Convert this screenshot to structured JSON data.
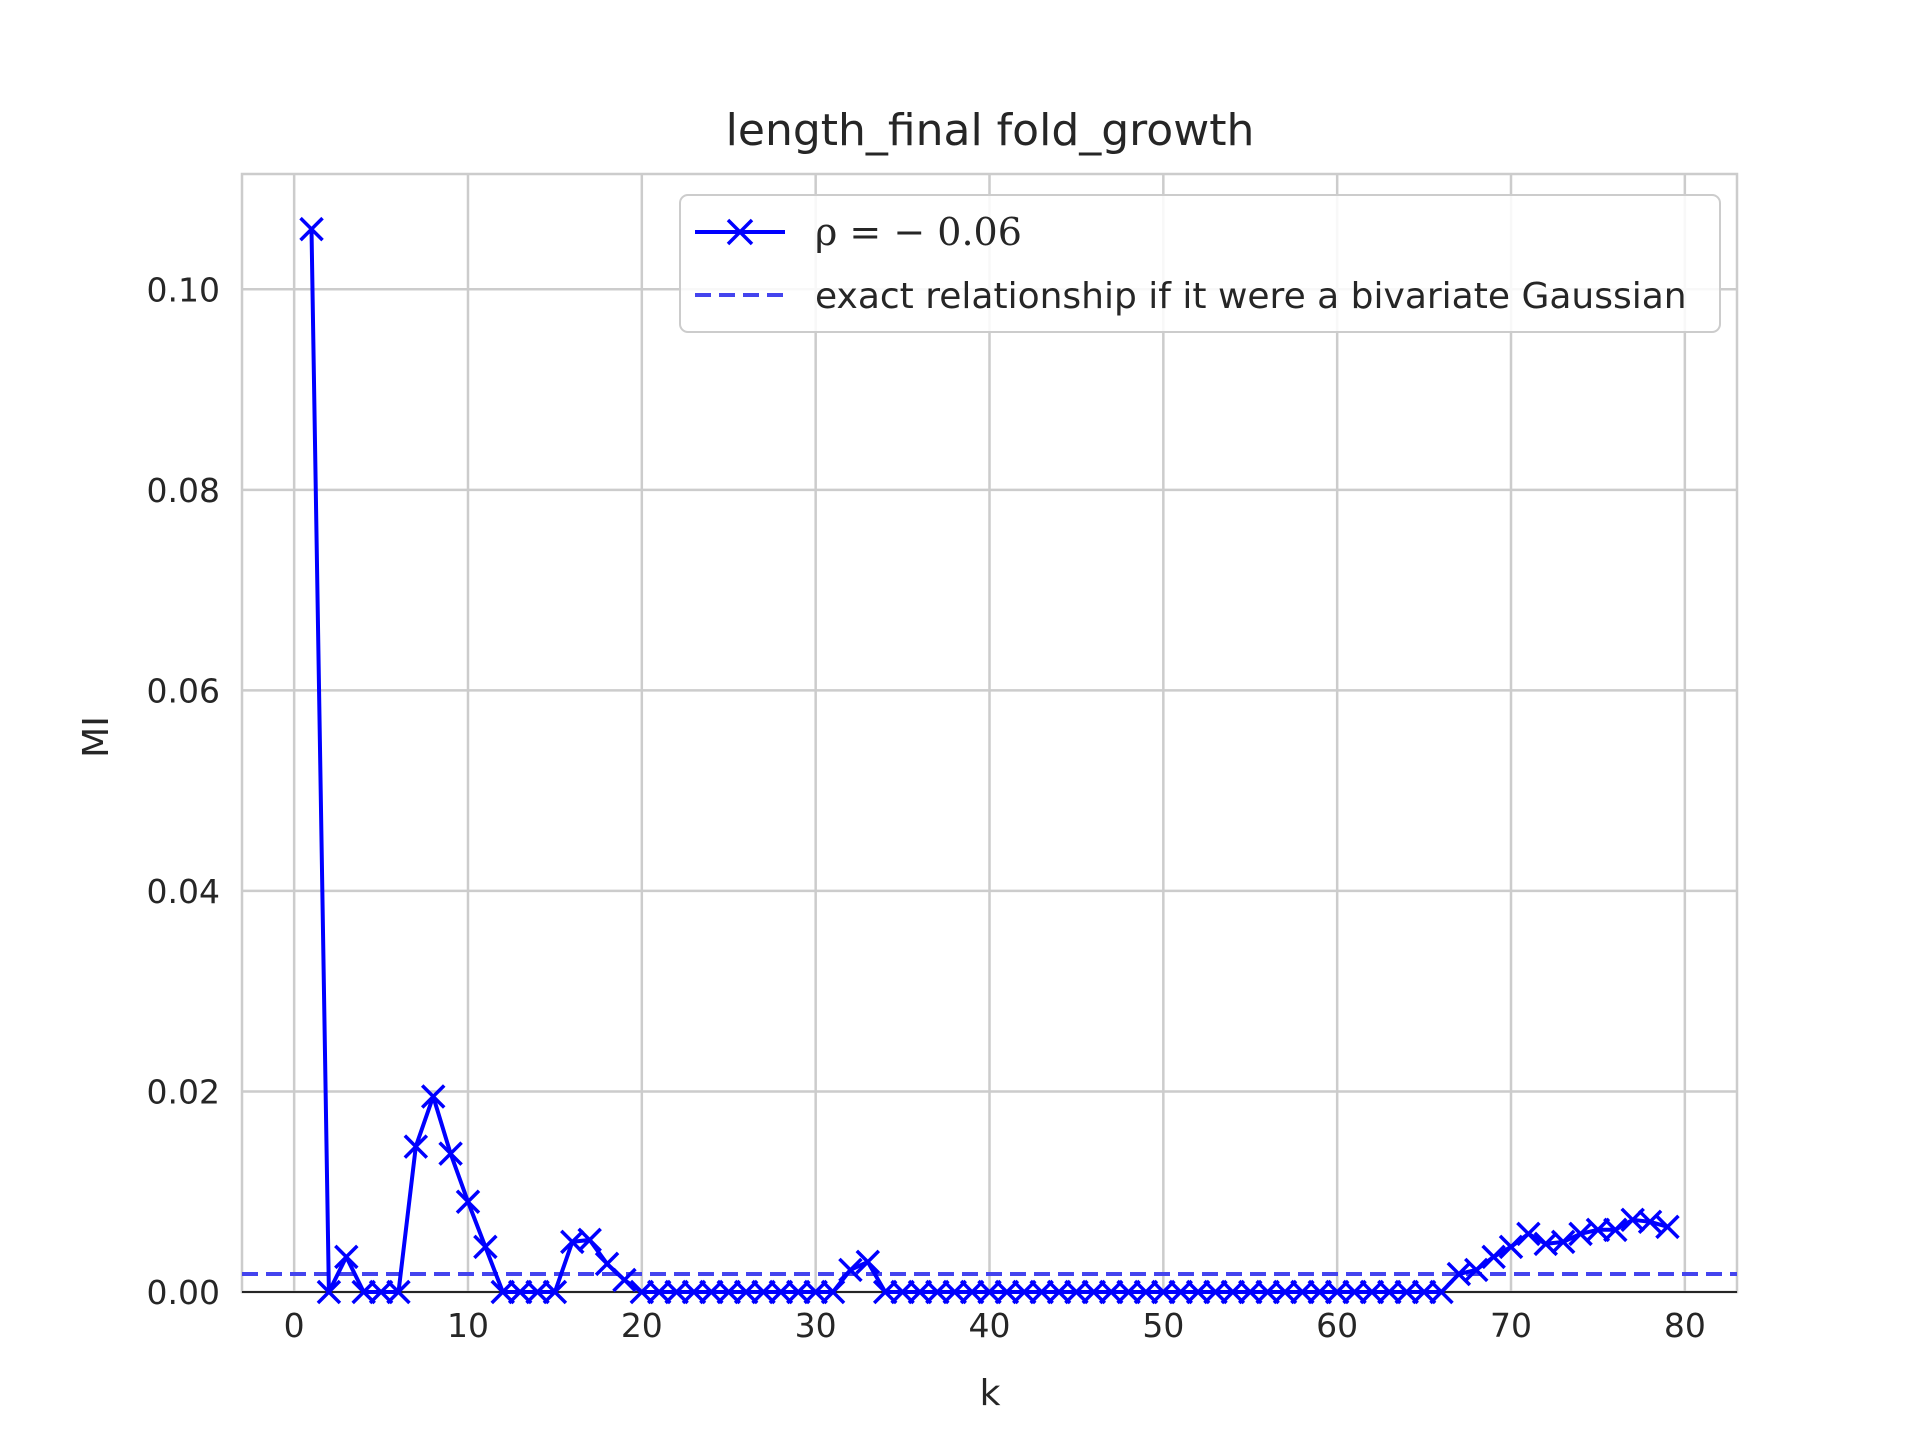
{
  "chart_data": {
    "type": "line",
    "title": "length_final fold_growth",
    "xlabel": "k",
    "ylabel": "MI",
    "xlim": [
      -3,
      83
    ],
    "ylim": [
      0,
      0.1115
    ],
    "xticks": [
      0,
      10,
      20,
      30,
      40,
      50,
      60,
      70,
      80
    ],
    "xtick_labels": [
      "0",
      "10",
      "20",
      "30",
      "40",
      "50",
      "60",
      "70",
      "80"
    ],
    "yticks": [
      0.0,
      0.02,
      0.04,
      0.06,
      0.08,
      0.1
    ],
    "ytick_labels": [
      "0.00",
      "0.02",
      "0.04",
      "0.06",
      "0.08",
      "0.10"
    ],
    "grid": true,
    "legend_position": "top-right",
    "colors": {
      "series": "#0000ff",
      "reference": "#4444ee",
      "grid": "#cccccc",
      "text": "#262626"
    },
    "series": [
      {
        "name_prefix": "ρ = ",
        "name_value": "− 0.06",
        "style": "solid-x-markers",
        "x": [
          1,
          2,
          3,
          4,
          5,
          6,
          7,
          8,
          9,
          10,
          11,
          12,
          13,
          14,
          15,
          16,
          17,
          18,
          19,
          20,
          21,
          22,
          23,
          24,
          25,
          26,
          27,
          28,
          29,
          30,
          31,
          32,
          33,
          34,
          35,
          36,
          37,
          38,
          39,
          40,
          41,
          42,
          43,
          44,
          45,
          46,
          47,
          48,
          49,
          50,
          51,
          52,
          53,
          54,
          55,
          56,
          57,
          58,
          59,
          60,
          61,
          62,
          63,
          64,
          65,
          66,
          67,
          68,
          69,
          70,
          71,
          72,
          73,
          74,
          75,
          76,
          77,
          78,
          79
        ],
        "y": [
          0.106,
          0.0,
          0.0035,
          0.0,
          0.0,
          0.0,
          0.0145,
          0.0195,
          0.0138,
          0.009,
          0.0045,
          0.0,
          0.0,
          0.0,
          0.0,
          0.005,
          0.0052,
          0.0028,
          0.0012,
          0.0,
          0.0,
          0.0,
          0.0,
          0.0,
          0.0,
          0.0,
          0.0,
          0.0,
          0.0,
          0.0,
          0.0,
          0.0022,
          0.003,
          0.0,
          0.0,
          0.0,
          0.0,
          0.0,
          0.0,
          0.0,
          0.0,
          0.0,
          0.0,
          0.0,
          0.0,
          0.0,
          0.0,
          0.0,
          0.0,
          0.0,
          0.0,
          0.0,
          0.0,
          0.0,
          0.0,
          0.0,
          0.0,
          0.0,
          0.0,
          0.0,
          0.0,
          0.0,
          0.0,
          0.0,
          0.0,
          0.0,
          0.0018,
          0.0022,
          0.0035,
          0.0045,
          0.0058,
          0.0048,
          0.005,
          0.0058,
          0.0062,
          0.0062,
          0.0072,
          0.007,
          0.0065
        ]
      },
      {
        "name": "exact relationship if it were a bivariate Gaussian",
        "style": "dashed",
        "y_constant": 0.0018
      }
    ]
  }
}
